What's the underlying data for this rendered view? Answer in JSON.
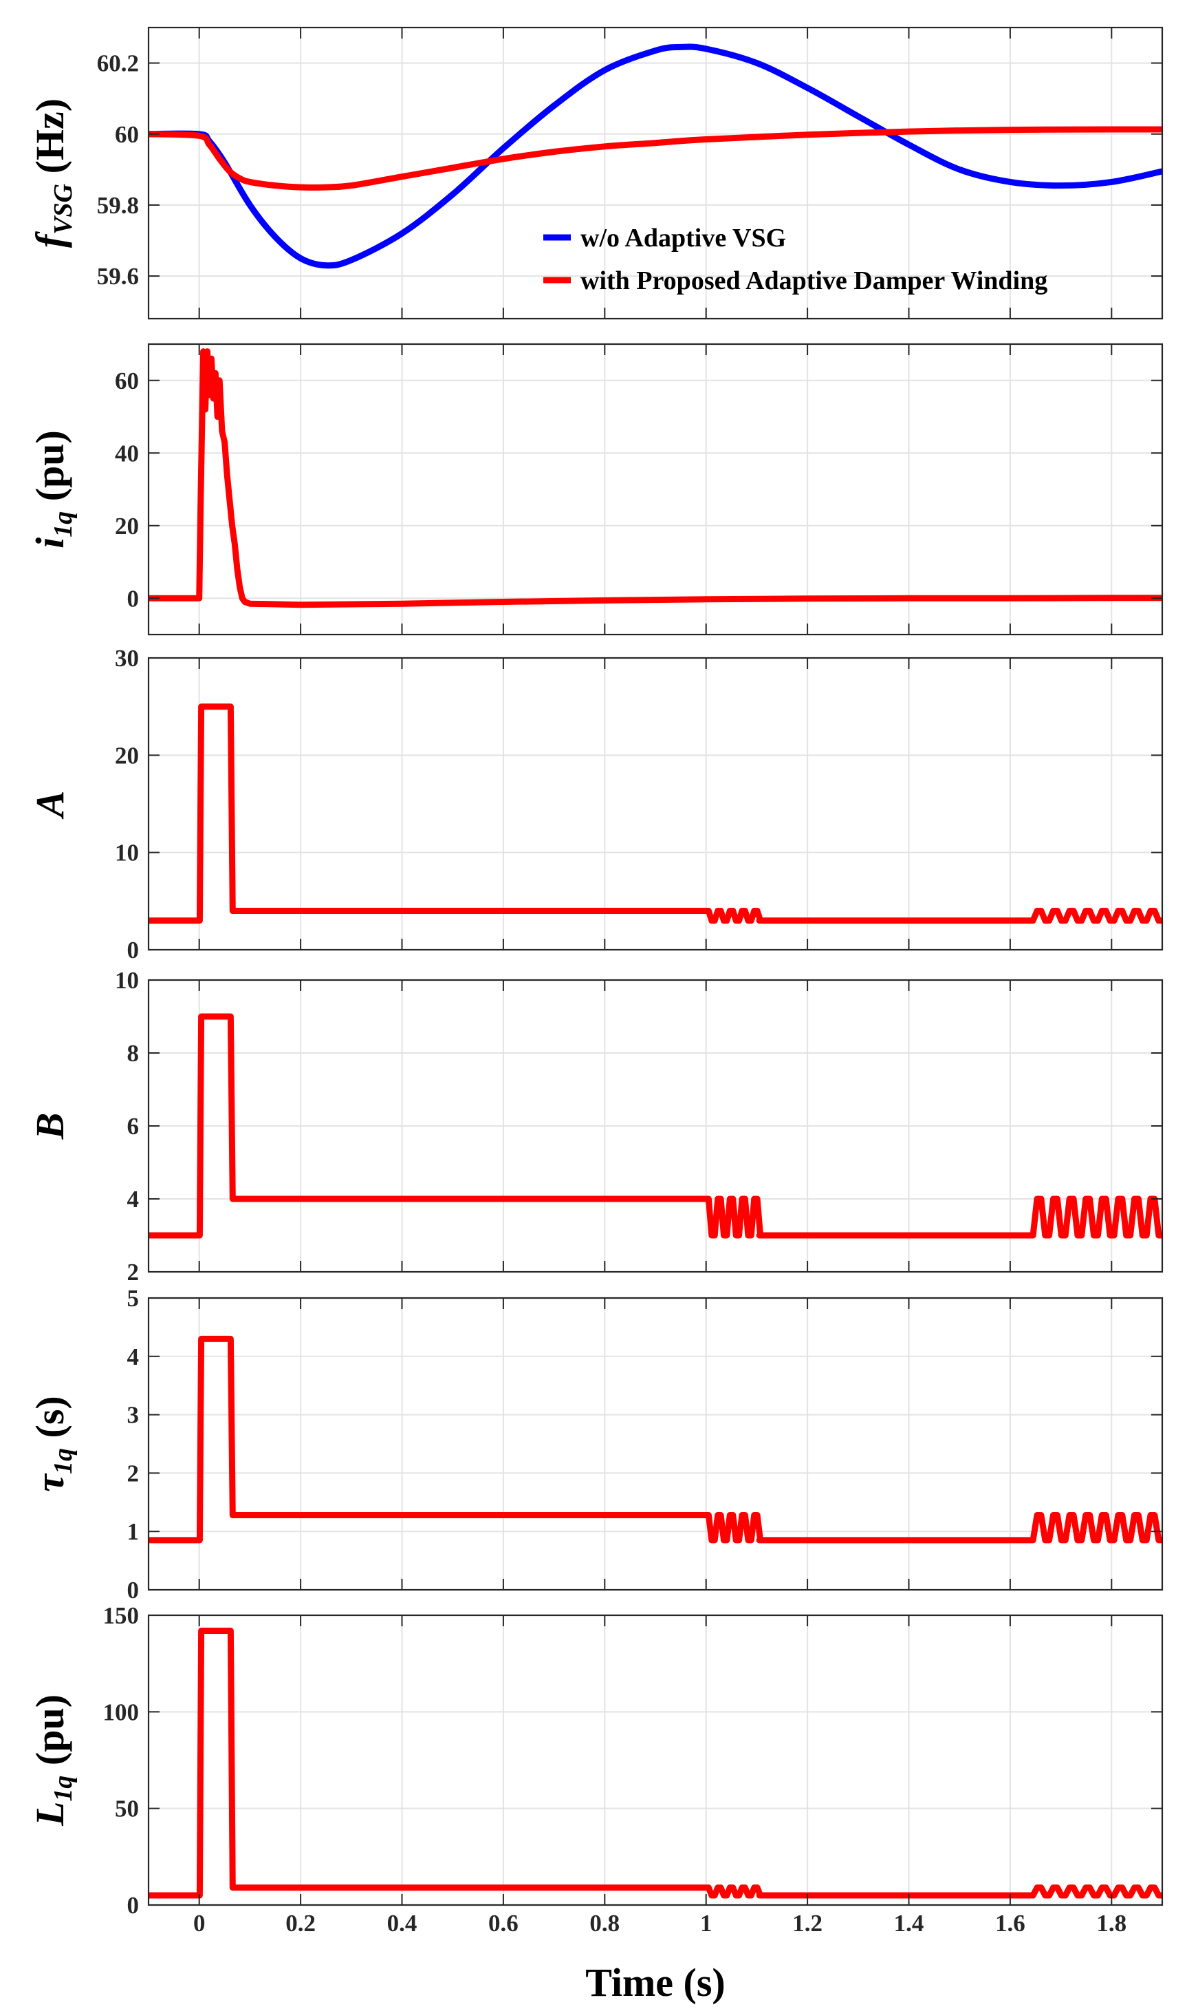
{
  "chart_data": [
    {
      "type": "line",
      "ylabel_main": "f",
      "ylabel_sub": "VSG",
      "ylabel_unit": " (Hz)",
      "xlim": [
        -0.1,
        1.9
      ],
      "ylim": [
        59.48,
        60.3
      ],
      "xticks": [
        0,
        0.2,
        0.4,
        0.6,
        0.8,
        1,
        1.2,
        1.4,
        1.6,
        1.8
      ],
      "xtick_labels": [
        "0",
        "0.2",
        "0.4",
        "0.6",
        "0.8",
        "1",
        "1.2",
        "1.4",
        "1.6",
        "1.8"
      ],
      "yticks": [
        59.6,
        59.8,
        60,
        60.2
      ],
      "ytick_labels": [
        "59.6",
        "59.8",
        "60",
        "60.2"
      ],
      "grid": true,
      "legend_position": "lower-right",
      "series": [
        {
          "name": "w/o Adaptive VSG",
          "color": "#0000ff",
          "x": [
            -0.1,
            0,
            0.02,
            0.05,
            0.1,
            0.15,
            0.2,
            0.25,
            0.3,
            0.4,
            0.5,
            0.6,
            0.7,
            0.8,
            0.9,
            0.95,
            1.0,
            1.1,
            1.2,
            1.3,
            1.4,
            1.5,
            1.6,
            1.7,
            1.8,
            1.9
          ],
          "y": [
            60.0,
            60.0,
            59.98,
            59.92,
            59.8,
            59.71,
            59.65,
            59.63,
            59.645,
            59.72,
            59.83,
            59.96,
            60.08,
            60.18,
            60.235,
            60.245,
            60.24,
            60.2,
            60.13,
            60.05,
            59.97,
            59.9,
            59.865,
            59.855,
            59.865,
            59.895
          ]
        },
        {
          "name": "with Proposed Adaptive Damper Winding",
          "color": "#ff0000",
          "x": [
            -0.1,
            0,
            0.02,
            0.04,
            0.06,
            0.08,
            0.1,
            0.15,
            0.2,
            0.25,
            0.3,
            0.4,
            0.5,
            0.6,
            0.7,
            0.8,
            0.9,
            1.0,
            1.2,
            1.4,
            1.6,
            1.8,
            1.9
          ],
          "y": [
            60.0,
            59.995,
            59.97,
            59.93,
            59.895,
            59.875,
            59.865,
            59.855,
            59.85,
            59.85,
            59.855,
            59.88,
            59.905,
            59.93,
            59.95,
            59.965,
            59.975,
            59.985,
            59.998,
            60.007,
            60.012,
            60.013,
            60.013
          ]
        }
      ]
    },
    {
      "type": "line",
      "ylabel_main": "i",
      "ylabel_sub": "1q",
      "ylabel_unit": " (pu)",
      "xlim": [
        -0.1,
        1.9
      ],
      "ylim": [
        -10,
        70
      ],
      "xticks": [
        0,
        0.2,
        0.4,
        0.6,
        0.8,
        1,
        1.2,
        1.4,
        1.6,
        1.8
      ],
      "yticks": [
        0,
        20,
        40,
        60
      ],
      "ytick_labels": [
        "0",
        "20",
        "40",
        "60"
      ],
      "grid": true,
      "series": [
        {
          "color": "#ff0000",
          "x": [
            -0.1,
            0.0,
            0.003,
            0.008,
            0.012,
            0.016,
            0.02,
            0.024,
            0.028,
            0.032,
            0.036,
            0.04,
            0.045,
            0.05,
            0.055,
            0.06,
            0.065,
            0.07,
            0.075,
            0.08,
            0.085,
            0.09,
            0.1,
            0.2,
            0.4,
            0.6,
            0.8,
            1.0,
            1.2,
            1.4,
            1.6,
            1.8,
            1.9
          ],
          "y": [
            0,
            0,
            28,
            68,
            52,
            68,
            56,
            66,
            55,
            62,
            50,
            60,
            46,
            43,
            34,
            27,
            20,
            15,
            8,
            3,
            0,
            -1,
            -1.5,
            -1.8,
            -1.5,
            -1.0,
            -0.6,
            -0.3,
            -0.1,
            0,
            0,
            0.1,
            0.1
          ]
        }
      ]
    },
    {
      "type": "line",
      "ylabel_main": "A",
      "xlim": [
        -0.1,
        1.9
      ],
      "ylim": [
        0,
        30
      ],
      "xticks": [
        0,
        0.2,
        0.4,
        0.6,
        0.8,
        1,
        1.2,
        1.4,
        1.6,
        1.8
      ],
      "yticks": [
        0,
        10,
        20,
        30
      ],
      "ytick_labels": [
        "0",
        "10",
        "20",
        "30"
      ],
      "grid": true,
      "steps": {
        "pre": 3,
        "peak": 25,
        "mid": 4,
        "low": 3,
        "high": 4
      },
      "series": [
        {
          "color": "#ff0000"
        }
      ]
    },
    {
      "type": "line",
      "ylabel_main": "B",
      "xlim": [
        -0.1,
        1.9
      ],
      "ylim": [
        2,
        10
      ],
      "xticks": [
        0,
        0.2,
        0.4,
        0.6,
        0.8,
        1,
        1.2,
        1.4,
        1.6,
        1.8
      ],
      "yticks": [
        2,
        4,
        6,
        8,
        10
      ],
      "ytick_labels": [
        "2",
        "4",
        "6",
        "8",
        "10"
      ],
      "grid": true,
      "steps": {
        "pre": 3,
        "peak": 9,
        "mid": 4,
        "low": 3,
        "high": 4
      },
      "series": [
        {
          "color": "#ff0000"
        }
      ]
    },
    {
      "type": "line",
      "ylabel_main": "τ",
      "ylabel_sub": "1q",
      "ylabel_unit": " (s)",
      "xlim": [
        -0.1,
        1.9
      ],
      "ylim": [
        0,
        5
      ],
      "xticks": [
        0,
        0.2,
        0.4,
        0.6,
        0.8,
        1,
        1.2,
        1.4,
        1.6,
        1.8
      ],
      "yticks": [
        0,
        1,
        2,
        3,
        4,
        5
      ],
      "ytick_labels": [
        "0",
        "1",
        "2",
        "3",
        "4",
        "5"
      ],
      "grid": true,
      "steps": {
        "pre": 0.85,
        "peak": 4.3,
        "mid": 1.28,
        "low": 0.85,
        "high": 1.28
      },
      "series": [
        {
          "color": "#ff0000"
        }
      ]
    },
    {
      "type": "line",
      "ylabel_main": "L",
      "ylabel_sub": "1q",
      "ylabel_unit": " (pu)",
      "xlim": [
        -0.1,
        1.9
      ],
      "ylim": [
        0,
        150
      ],
      "xticks": [
        0,
        0.2,
        0.4,
        0.6,
        0.8,
        1,
        1.2,
        1.4,
        1.6,
        1.8
      ],
      "xtick_labels": [
        "0",
        "0.2",
        "0.4",
        "0.6",
        "0.8",
        "1",
        "1.2",
        "1.4",
        "1.6",
        "1.8"
      ],
      "yticks": [
        0,
        50,
        100,
        150
      ],
      "ytick_labels": [
        "0",
        "50",
        "100",
        "150"
      ],
      "grid": true,
      "steps": {
        "pre": 5,
        "peak": 142,
        "mid": 9,
        "low": 5,
        "high": 9
      },
      "series": [
        {
          "color": "#ff0000"
        }
      ]
    }
  ],
  "xlabel": "Time (s)"
}
